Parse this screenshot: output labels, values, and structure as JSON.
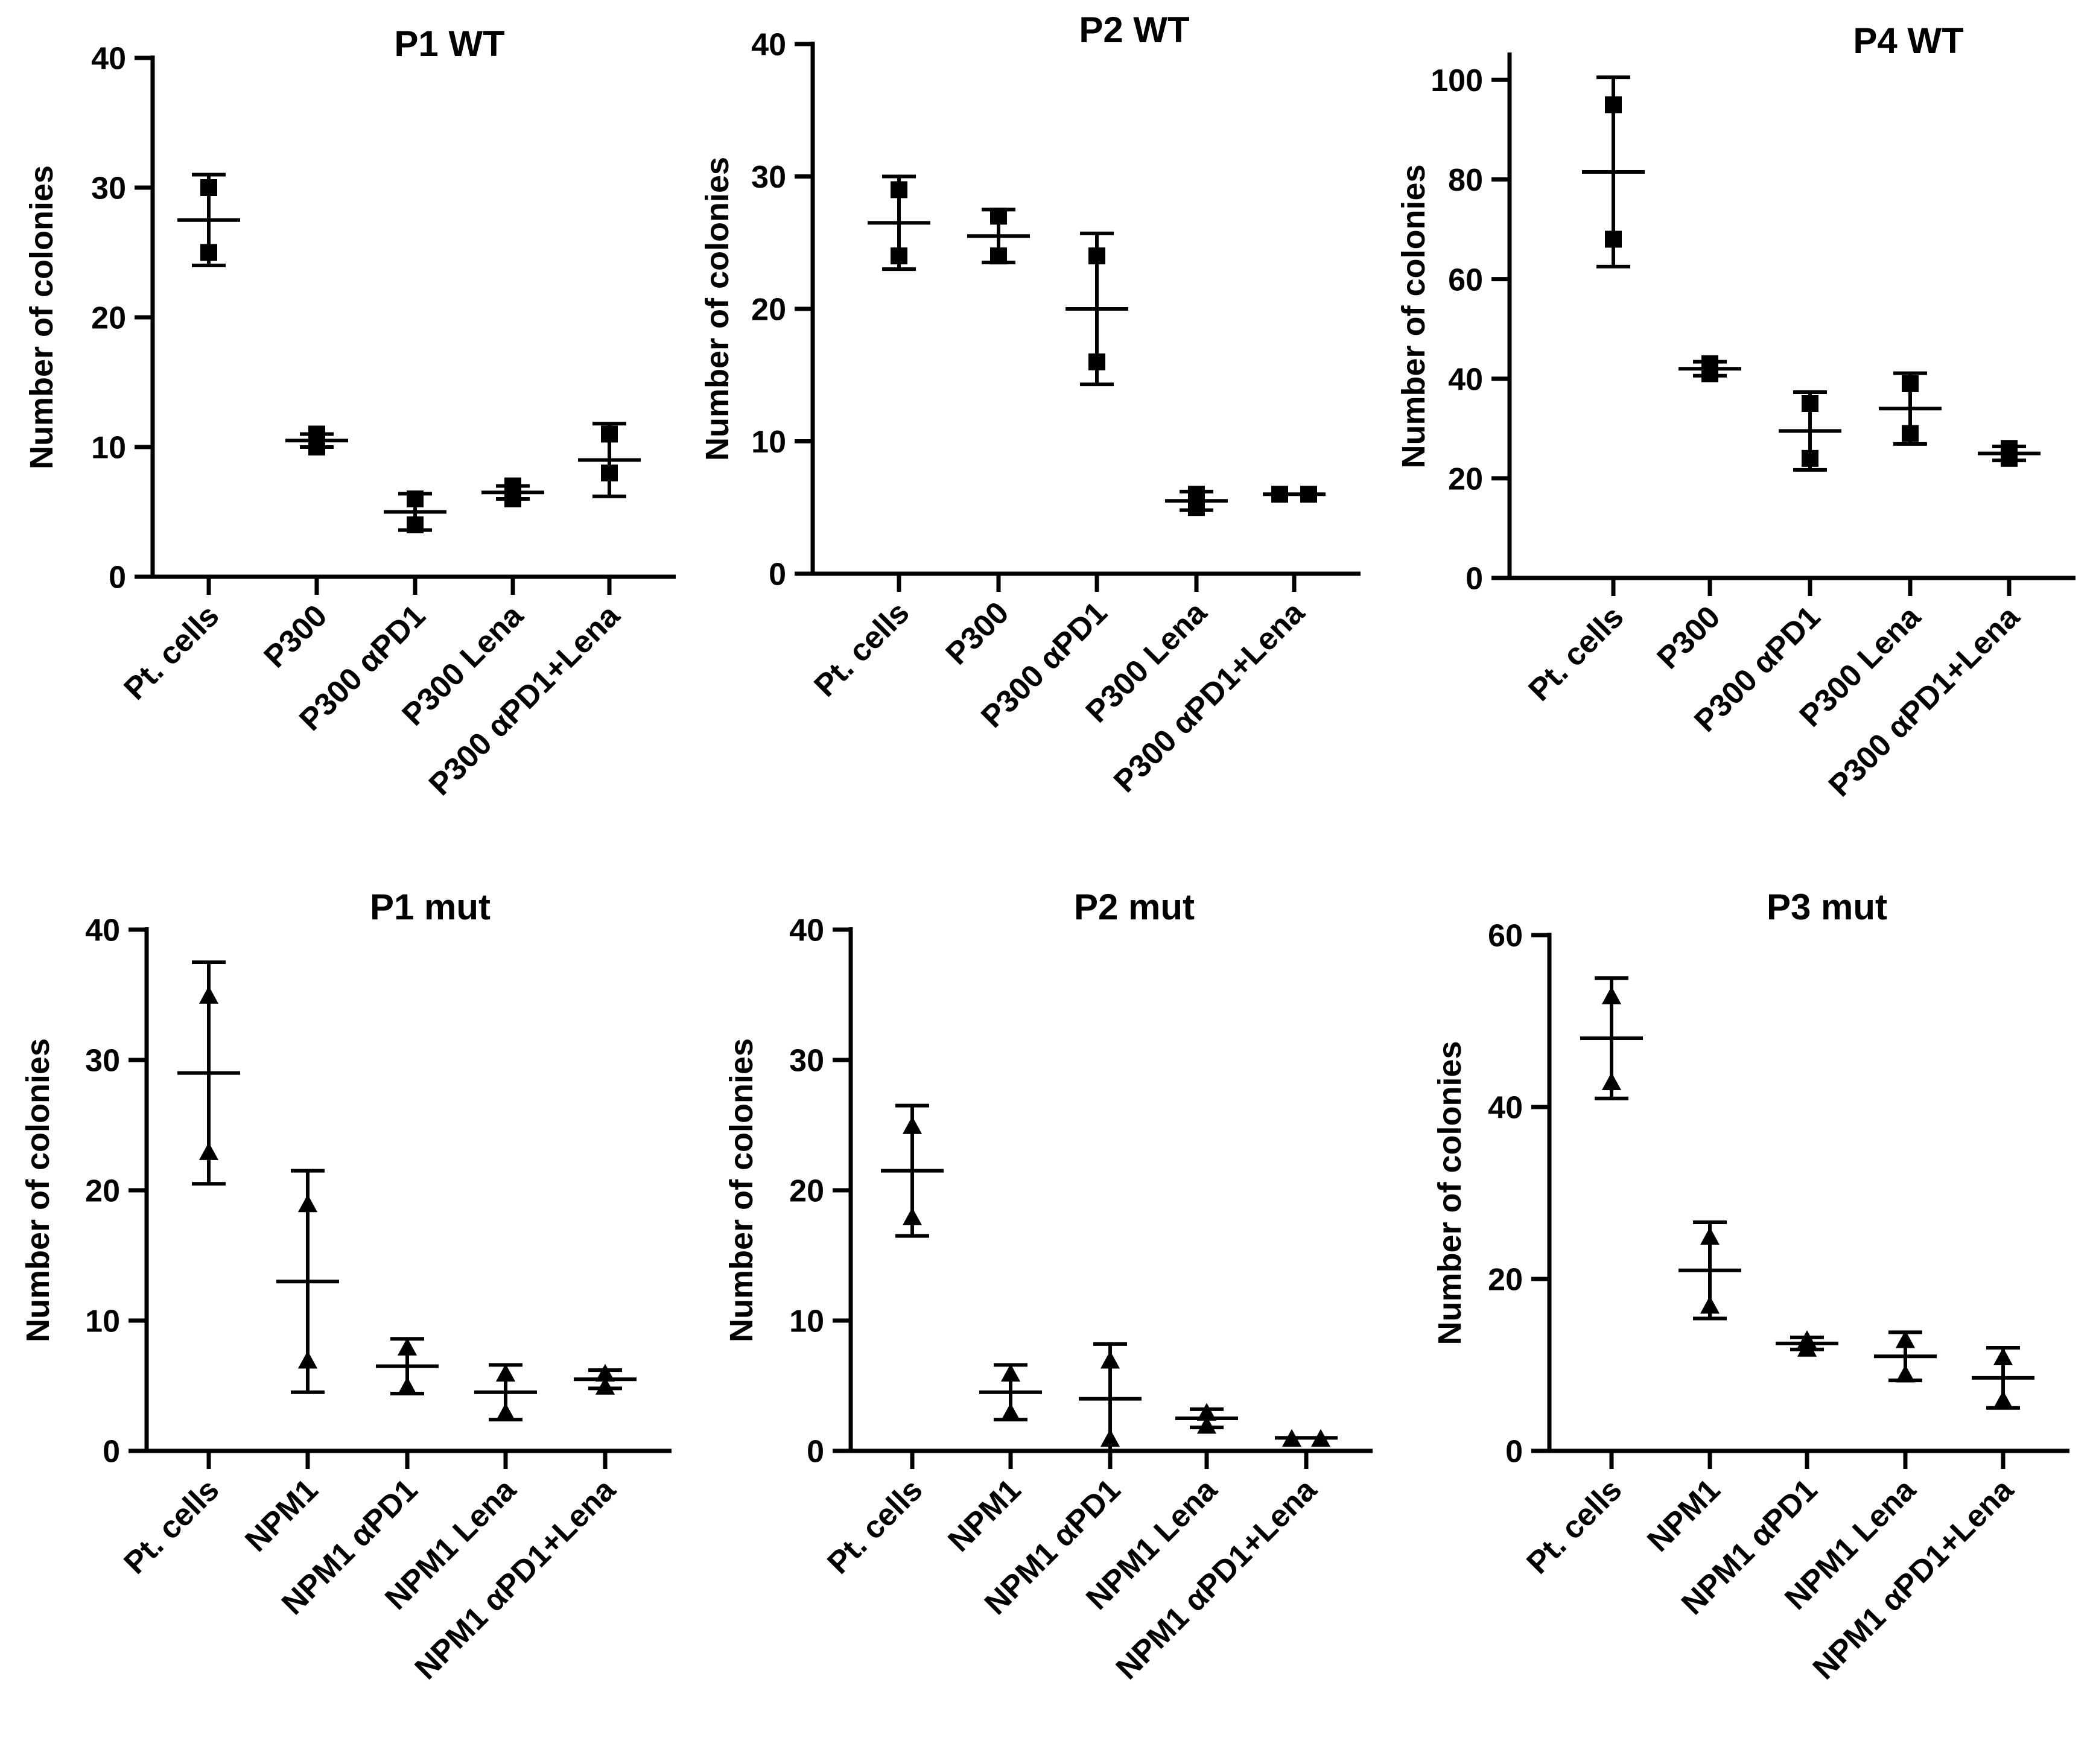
{
  "chart_data": [
    {
      "type": "scatter",
      "title": "P1 WT",
      "ylabel": "Number of colonies",
      "ylim": [
        0,
        40
      ],
      "yticks": [
        0,
        10,
        20,
        30,
        40
      ],
      "marker": "square",
      "categories": [
        "Pt. cells",
        "P300",
        "P300 αPD1",
        "P300 Lena",
        "P300 αPD1+Lena"
      ],
      "points": [
        [
          25,
          30
        ],
        [
          10,
          11
        ],
        [
          6,
          4
        ],
        [
          6,
          7
        ],
        [
          8,
          11
        ]
      ],
      "mean": [
        27.5,
        10.5,
        5,
        6.5,
        9
      ],
      "error_low": [
        24,
        10,
        3.6,
        6,
        6.2
      ],
      "error_high": [
        31,
        11,
        6.4,
        7,
        11.8
      ]
    },
    {
      "type": "scatter",
      "title": "P2 WT",
      "ylabel": "Number of colonies",
      "ylim": [
        0,
        40
      ],
      "yticks": [
        0,
        10,
        20,
        30,
        40
      ],
      "marker": "square",
      "categories": [
        "Pt. cells",
        "P300",
        "P300 αPD1",
        "P300 Lena",
        "P300 αPD1+Lena"
      ],
      "points": [
        [
          24,
          29
        ],
        [
          24,
          27
        ],
        [
          16,
          24
        ],
        [
          5,
          6
        ],
        [
          6,
          6
        ]
      ],
      "mean": [
        26.5,
        25.5,
        20,
        5.5,
        6
      ],
      "error_low": [
        23,
        23.5,
        14.3,
        4.8,
        6
      ],
      "error_high": [
        30,
        27.5,
        25.7,
        6.2,
        6
      ]
    },
    {
      "type": "scatter",
      "title": "P4 WT",
      "ylabel": "Number of colonies",
      "ylim": [
        0,
        105
      ],
      "yticks": [
        0,
        20,
        40,
        60,
        80,
        100
      ],
      "marker": "square",
      "categories": [
        "Pt. cells",
        "P300",
        "P300 αPD1",
        "P300 Lena",
        "P300 αPD1+Lena"
      ],
      "points": [
        [
          68,
          95
        ],
        [
          41,
          43
        ],
        [
          24,
          35
        ],
        [
          29,
          39
        ],
        [
          24,
          26
        ]
      ],
      "mean": [
        81.5,
        42,
        29.5,
        34,
        25
      ],
      "error_low": [
        62.5,
        40.6,
        21.7,
        26.9,
        23.6
      ],
      "error_high": [
        100.5,
        43.4,
        37.3,
        41.1,
        26.4
      ]
    },
    {
      "type": "scatter",
      "title": "P1 mut",
      "ylabel": "Number of colonies",
      "ylim": [
        0,
        40
      ],
      "yticks": [
        0,
        10,
        20,
        30,
        40
      ],
      "marker": "triangle",
      "categories": [
        "Pt. cells",
        "NPM1",
        "NPM1 αPD1",
        "NPM1 Lena",
        "NPM1 αPD1+Lena"
      ],
      "points": [
        [
          23,
          35
        ],
        [
          7,
          19
        ],
        [
          5,
          8
        ],
        [
          3,
          6
        ],
        [
          5,
          6
        ]
      ],
      "mean": [
        29,
        13,
        6.5,
        4.5,
        5.5
      ],
      "error_low": [
        20.5,
        4.5,
        4.4,
        2.4,
        4.8
      ],
      "error_high": [
        37.5,
        21.5,
        8.6,
        6.6,
        6.2
      ]
    },
    {
      "type": "scatter",
      "title": "P2 mut",
      "ylabel": "Number of colonies",
      "ylim": [
        0,
        40
      ],
      "yticks": [
        0,
        10,
        20,
        30,
        40
      ],
      "marker": "triangle",
      "categories": [
        "Pt. cells",
        "NPM1",
        "NPM1 αPD1",
        "NPM1 Lena",
        "NPM1 αPD1+Lena"
      ],
      "points": [
        [
          18,
          25
        ],
        [
          3,
          6
        ],
        [
          1,
          7
        ],
        [
          2,
          3
        ],
        [
          1,
          1
        ]
      ],
      "mean": [
        21.5,
        4.5,
        4,
        2.5,
        1
      ],
      "error_low": [
        16.5,
        2.4,
        -0.2,
        1.8,
        1
      ],
      "error_high": [
        26.5,
        6.6,
        8.2,
        3.2,
        1
      ]
    },
    {
      "type": "scatter",
      "title": "P3 mut",
      "ylabel": "Number of colonies",
      "ylim": [
        0,
        60
      ],
      "yticks": [
        0,
        20,
        40,
        60
      ],
      "marker": "triangle",
      "categories": [
        "Pt. cells",
        "NPM1",
        "NPM1 αPD1",
        "NPM1 Lena",
        "NPM1 αPD1+Lena"
      ],
      "points": [
        [
          43,
          53
        ],
        [
          17,
          25
        ],
        [
          12,
          13
        ],
        [
          9,
          13
        ],
        [
          6,
          11
        ]
      ],
      "mean": [
        48,
        21,
        12.5,
        11,
        8.5
      ],
      "error_low": [
        41,
        15.4,
        11.8,
        8.2,
        5
      ],
      "error_high": [
        55,
        26.6,
        13.2,
        13.8,
        12
      ]
    }
  ]
}
